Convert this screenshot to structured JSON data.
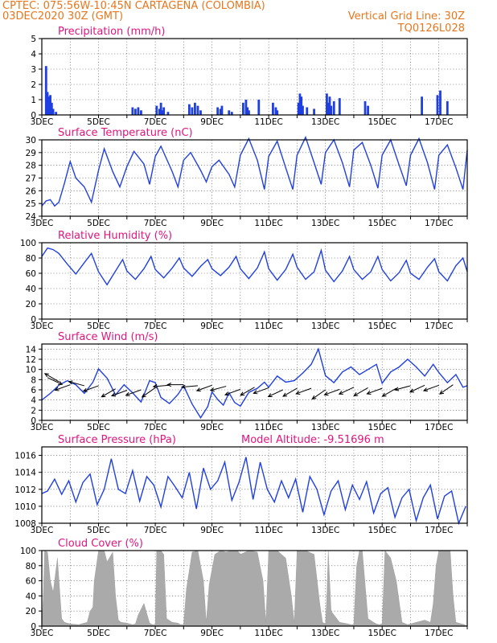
{
  "header": {
    "line1": "CPTEC:   075:56W-10:45N   CARTAGENA (COLOMBIA)",
    "line2": "03DEC2020 30Z (GMT)",
    "grid_note": "Vertical Grid Line: 30Z",
    "code": "TQ0126L028"
  },
  "colors": {
    "line": "#2040e0",
    "bar": "#1f3fe0",
    "cloud": "#aaaaaa",
    "title": "#e0157e",
    "header": "#e8761e"
  },
  "x_axis": {
    "start_label": "3DEC",
    "labels": [
      "3DEC",
      "5DEC",
      "7DEC",
      "9DEC",
      "11DEC",
      "13DEC",
      "15DEC",
      "17DEC"
    ],
    "range_days": [
      3,
      18
    ]
  },
  "chart_data": [
    {
      "type": "bar",
      "title": "Precipitation (mm/h)",
      "ylim": [
        0,
        5
      ],
      "yticks": [
        "0",
        "1",
        "2",
        "3",
        "4",
        "5"
      ],
      "x": [
        3.15,
        3.2,
        3.25,
        3.3,
        3.35,
        3.4,
        3.5,
        6.2,
        6.3,
        6.4,
        6.5,
        7.05,
        7.15,
        7.2,
        7.25,
        7.3,
        7.45,
        8.2,
        8.3,
        8.4,
        8.5,
        8.6,
        9.2,
        9.3,
        9.35,
        9.6,
        9.7,
        10.1,
        10.2,
        10.25,
        10.3,
        10.65,
        11.15,
        11.25,
        11.3,
        12.05,
        12.1,
        12.15,
        12.2,
        12.35,
        12.6,
        13.05,
        13.1,
        13.15,
        13.2,
        13.3,
        13.5,
        14.4,
        14.5,
        16.4,
        16.95,
        17.05,
        17.3
      ],
      "values": [
        3.2,
        1.5,
        1.2,
        1.3,
        0.8,
        0.4,
        0.2,
        0.5,
        0.4,
        0.5,
        0.3,
        0.6,
        0.4,
        0.8,
        0.3,
        0.5,
        0.2,
        0.7,
        0.5,
        0.8,
        0.6,
        0.3,
        0.5,
        0.4,
        0.6,
        0.3,
        0.2,
        0.8,
        1.0,
        0.5,
        0.3,
        1.0,
        0.8,
        0.5,
        0.3,
        0.8,
        1.4,
        1.2,
        0.6,
        0.5,
        0.4,
        1.4,
        0.8,
        1.2,
        0.6,
        0.9,
        1.1,
        0.9,
        0.6,
        1.2,
        1.3,
        1.6,
        0.9
      ]
    },
    {
      "type": "line",
      "title": "Surface Temperature (nC)",
      "ylim": [
        24,
        30
      ],
      "yticks": [
        "24",
        "25",
        "26",
        "27",
        "28",
        "29",
        "30"
      ],
      "x": [
        3,
        3.15,
        3.3,
        3.45,
        3.6,
        3.8,
        4,
        4.2,
        4.5,
        4.75,
        5,
        5.2,
        5.5,
        5.75,
        6,
        6.25,
        6.6,
        6.8,
        7,
        7.2,
        7.6,
        7.8,
        8,
        8.25,
        8.6,
        8.8,
        9,
        9.25,
        9.6,
        9.8,
        10,
        10.3,
        10.6,
        10.85,
        11,
        11.3,
        11.6,
        11.85,
        12,
        12.3,
        12.6,
        12.85,
        13,
        13.3,
        13.6,
        13.85,
        14,
        14.3,
        14.6,
        14.85,
        15,
        15.3,
        15.6,
        15.85,
        16,
        16.3,
        16.6,
        16.85,
        17,
        17.3,
        17.6,
        17.85,
        18
      ],
      "values": [
        24.8,
        25.2,
        25.3,
        24.8,
        25.1,
        26.6,
        28.3,
        27.0,
        26.3,
        25.1,
        27.6,
        29.3,
        27.5,
        26.3,
        27.9,
        29.1,
        28.1,
        26.5,
        28.7,
        29.5,
        27.5,
        26.3,
        28.4,
        29.0,
        27.6,
        26.7,
        27.9,
        28.4,
        27.3,
        26.3,
        28.8,
        30.1,
        28.4,
        26.1,
        28.7,
        29.9,
        27.8,
        26.1,
        28.8,
        30.2,
        28.2,
        26.5,
        29.0,
        30.0,
        28.2,
        26.3,
        29.2,
        29.8,
        28.0,
        26.2,
        28.8,
        30.0,
        28.0,
        26.4,
        28.8,
        30.1,
        28.2,
        26.1,
        28.8,
        29.6,
        27.8,
        26.1,
        29.2
      ]
    },
    {
      "type": "line",
      "title": "Relative Humidity (%)",
      "ylim": [
        0,
        100
      ],
      "yticks": [
        "0",
        "20",
        "40",
        "60",
        "80",
        "100"
      ],
      "x": [
        3,
        3.2,
        3.4,
        3.6,
        3.9,
        4.2,
        4.5,
        4.75,
        5,
        5.3,
        5.6,
        5.85,
        6,
        6.3,
        6.6,
        6.85,
        7,
        7.3,
        7.6,
        7.85,
        8,
        8.3,
        8.6,
        8.85,
        9,
        9.3,
        9.6,
        9.85,
        10,
        10.3,
        10.6,
        10.85,
        11,
        11.3,
        11.6,
        11.85,
        12,
        12.3,
        12.6,
        12.85,
        13,
        13.3,
        13.6,
        13.85,
        14,
        14.3,
        14.6,
        14.85,
        15,
        15.3,
        15.6,
        15.85,
        16,
        16.3,
        16.6,
        16.85,
        17,
        17.3,
        17.6,
        17.85,
        18
      ],
      "values": [
        82,
        93,
        91,
        86,
        72,
        59,
        74,
        86,
        62,
        45,
        63,
        78,
        63,
        52,
        66,
        82,
        65,
        54,
        67,
        80,
        67,
        56,
        69,
        78,
        66,
        57,
        68,
        82,
        66,
        53,
        67,
        88,
        66,
        51,
        65,
        85,
        68,
        52,
        62,
        90,
        64,
        49,
        63,
        82,
        65,
        52,
        62,
        82,
        65,
        50,
        61,
        77,
        60,
        52,
        68,
        79,
        62,
        50,
        70,
        80,
        62
      ]
    },
    {
      "type": "line",
      "title": "Surface Wind (m/s)",
      "ylim": [
        0,
        15
      ],
      "yticks": [
        "0",
        "2",
        "4",
        "6",
        "8",
        "10",
        "12",
        "14"
      ],
      "x": [
        3,
        3.3,
        3.6,
        3.9,
        4.2,
        4.5,
        4.8,
        5,
        5.3,
        5.6,
        5.9,
        6.2,
        6.5,
        6.8,
        7,
        7.2,
        7.5,
        7.8,
        8,
        8.3,
        8.6,
        8.85,
        9,
        9.2,
        9.4,
        9.6,
        9.8,
        10,
        10.3,
        10.6,
        10.85,
        11,
        11.3,
        11.6,
        11.9,
        12.2,
        12.5,
        12.75,
        13,
        13.3,
        13.6,
        13.9,
        14.2,
        14.5,
        14.8,
        15,
        15.3,
        15.6,
        15.9,
        16.2,
        16.5,
        16.8,
        17,
        17.3,
        17.6,
        17.85,
        18
      ],
      "values": [
        4.0,
        5.3,
        6.9,
        7.8,
        7.0,
        5.3,
        7.5,
        10.1,
        8.3,
        5.0,
        7.0,
        5.4,
        3.6,
        7.8,
        7.4,
        4.5,
        3.3,
        5.1,
        6.8,
        3.2,
        0.5,
        2.7,
        5.6,
        4.1,
        3.0,
        5.4,
        3.5,
        2.8,
        5.5,
        6.3,
        7.5,
        6.5,
        8.7,
        7.5,
        7.8,
        9.3,
        11.0,
        14.0,
        8.8,
        7.4,
        9.5,
        10.5,
        9.0,
        10.0,
        11.0,
        7.3,
        9.5,
        10.5,
        12.0,
        10.5,
        8.7,
        11.0,
        9.4,
        7.4,
        9.0,
        6.5,
        6.8
      ]
    },
    {
      "type": "line",
      "title": "Surface Pressure (hPa)",
      "ylim": [
        1008,
        1017
      ],
      "yticks": [
        "1008",
        "1010",
        "1012",
        "1014",
        "1016"
      ],
      "x": [
        3,
        3.2,
        3.45,
        3.7,
        3.95,
        4.2,
        4.45,
        4.7,
        4.95,
        5.2,
        5.45,
        5.7,
        5.95,
        6.2,
        6.45,
        6.7,
        6.95,
        7.2,
        7.45,
        7.7,
        7.95,
        8.2,
        8.45,
        8.7,
        8.95,
        9.2,
        9.45,
        9.7,
        9.95,
        10.2,
        10.45,
        10.7,
        10.95,
        11.2,
        11.45,
        11.7,
        11.95,
        12.2,
        12.45,
        12.7,
        12.95,
        13.2,
        13.45,
        13.7,
        13.95,
        14.2,
        14.45,
        14.7,
        14.95,
        15.2,
        15.45,
        15.7,
        15.95,
        16.2,
        16.45,
        16.7,
        16.95,
        17.2,
        17.45,
        17.7,
        17.95
      ],
      "values": [
        1011.5,
        1011.8,
        1013.2,
        1011.4,
        1013.0,
        1010.5,
        1012.8,
        1013.8,
        1010.2,
        1012.0,
        1015.6,
        1012.0,
        1011.5,
        1014.2,
        1010.6,
        1013.5,
        1012.5,
        1009.9,
        1013.5,
        1012.3,
        1011.0,
        1014.0,
        1009.7,
        1014.5,
        1012.0,
        1013.0,
        1015.2,
        1010.7,
        1012.8,
        1015.8,
        1010.8,
        1015.2,
        1012.0,
        1010.5,
        1013.0,
        1011.0,
        1013.2,
        1009.3,
        1013.5,
        1012.0,
        1009.0,
        1011.8,
        1013.0,
        1009.6,
        1012.5,
        1010.8,
        1012.9,
        1009.2,
        1011.5,
        1012.2,
        1008.7,
        1011.0,
        1012.0,
        1008.3,
        1011.0,
        1012.5,
        1008.5,
        1011.2,
        1011.8,
        1008.0,
        1010.0
      ]
    },
    {
      "type": "area",
      "title": "Cloud Cover (%)",
      "ylim": [
        0,
        100
      ],
      "yticks": [
        "0",
        "20",
        "40",
        "60",
        "80",
        "100"
      ],
      "x": [
        3,
        3.05,
        3.1,
        3.2,
        3.3,
        3.4,
        3.55,
        3.7,
        3.8,
        3.9,
        4.0,
        4.3,
        4.6,
        4.7,
        4.8,
        4.85,
        5.0,
        5.2,
        5.3,
        5.5,
        5.6,
        5.7,
        5.8,
        6.0,
        6.1,
        6.2,
        6.3,
        6.4,
        6.6,
        6.8,
        6.9,
        7.0,
        7.05,
        7.2,
        7.3,
        7.4,
        7.6,
        7.8,
        7.9,
        8.0,
        8.1,
        8.3,
        8.5,
        8.7,
        8.8,
        8.9,
        9.1,
        9.3,
        9.5,
        9.7,
        9.9,
        10.0,
        10.3,
        10.6,
        10.8,
        10.9,
        11.0,
        11.3,
        11.6,
        11.8,
        11.9,
        12.0,
        12.3,
        12.6,
        12.8,
        12.9,
        13.0,
        13.05,
        13.1,
        13.2,
        13.5,
        13.8,
        13.9,
        14.0,
        14.1,
        14.2,
        14.3,
        14.5,
        14.7,
        14.8,
        14.9,
        15.0,
        15.1,
        15.3,
        15.5,
        15.7,
        15.9,
        16.0,
        16.2,
        16.5,
        16.7,
        16.8,
        16.9,
        17.0,
        17.2,
        17.4,
        17.5,
        17.6,
        17.8,
        17.9,
        18.0
      ],
      "values": [
        0,
        40,
        100,
        98,
        60,
        45,
        90,
        10,
        5,
        4,
        3,
        2,
        5,
        20,
        25,
        60,
        100,
        100,
        85,
        98,
        40,
        8,
        5,
        4,
        3,
        2,
        3,
        15,
        30,
        4,
        2,
        2,
        100,
        100,
        95,
        10,
        5,
        4,
        2,
        2,
        50,
        98,
        100,
        60,
        5,
        55,
        95,
        100,
        98,
        100,
        100,
        95,
        100,
        98,
        60,
        5,
        100,
        100,
        90,
        40,
        5,
        100,
        100,
        95,
        30,
        5,
        3,
        40,
        100,
        20,
        5,
        3,
        2,
        2,
        80,
        100,
        100,
        10,
        5,
        3,
        2,
        3,
        100,
        90,
        60,
        5,
        2,
        3,
        5,
        8,
        5,
        30,
        80,
        100,
        100,
        100,
        40,
        5,
        3,
        2,
        0
      ]
    }
  ],
  "panels": {
    "wind_altitude_note": "Model Altitude: -9.51696 m"
  },
  "wind_arrows": {
    "x": [
      3.2,
      3.6,
      4.0,
      4.5,
      5.0,
      5.6,
      6.0,
      6.5,
      7.0,
      7.5,
      8.0,
      8.5,
      9.0,
      9.5,
      10.0,
      10.5,
      11.0,
      11.5,
      12.0,
      12.5,
      13.0,
      13.5,
      14.0,
      14.5,
      15.0,
      15.5,
      16.0,
      16.5,
      17.0,
      17.5
    ],
    "angle_deg": [
      -25,
      150,
      200,
      165,
      200,
      210,
      200,
      200,
      215,
      185,
      180,
      185,
      200,
      195,
      200,
      210,
      200,
      205,
      210,
      200,
      215,
      200,
      205,
      210,
      200,
      210,
      195,
      205,
      200,
      215
    ],
    "speed": [
      8.4,
      7.6,
      7.0,
      6.8,
      6.8,
      6.2,
      5.9,
      6.0,
      6.4,
      6.9,
      7.0,
      6.8,
      6.9,
      6.7,
      6.1,
      6.5,
      6.4,
      6.0,
      6.3,
      6.3,
      6.0,
      6.1,
      6.5,
      6.4,
      6.3,
      6.3,
      6.8,
      6.9,
      6.9,
      7.0
    ]
  }
}
